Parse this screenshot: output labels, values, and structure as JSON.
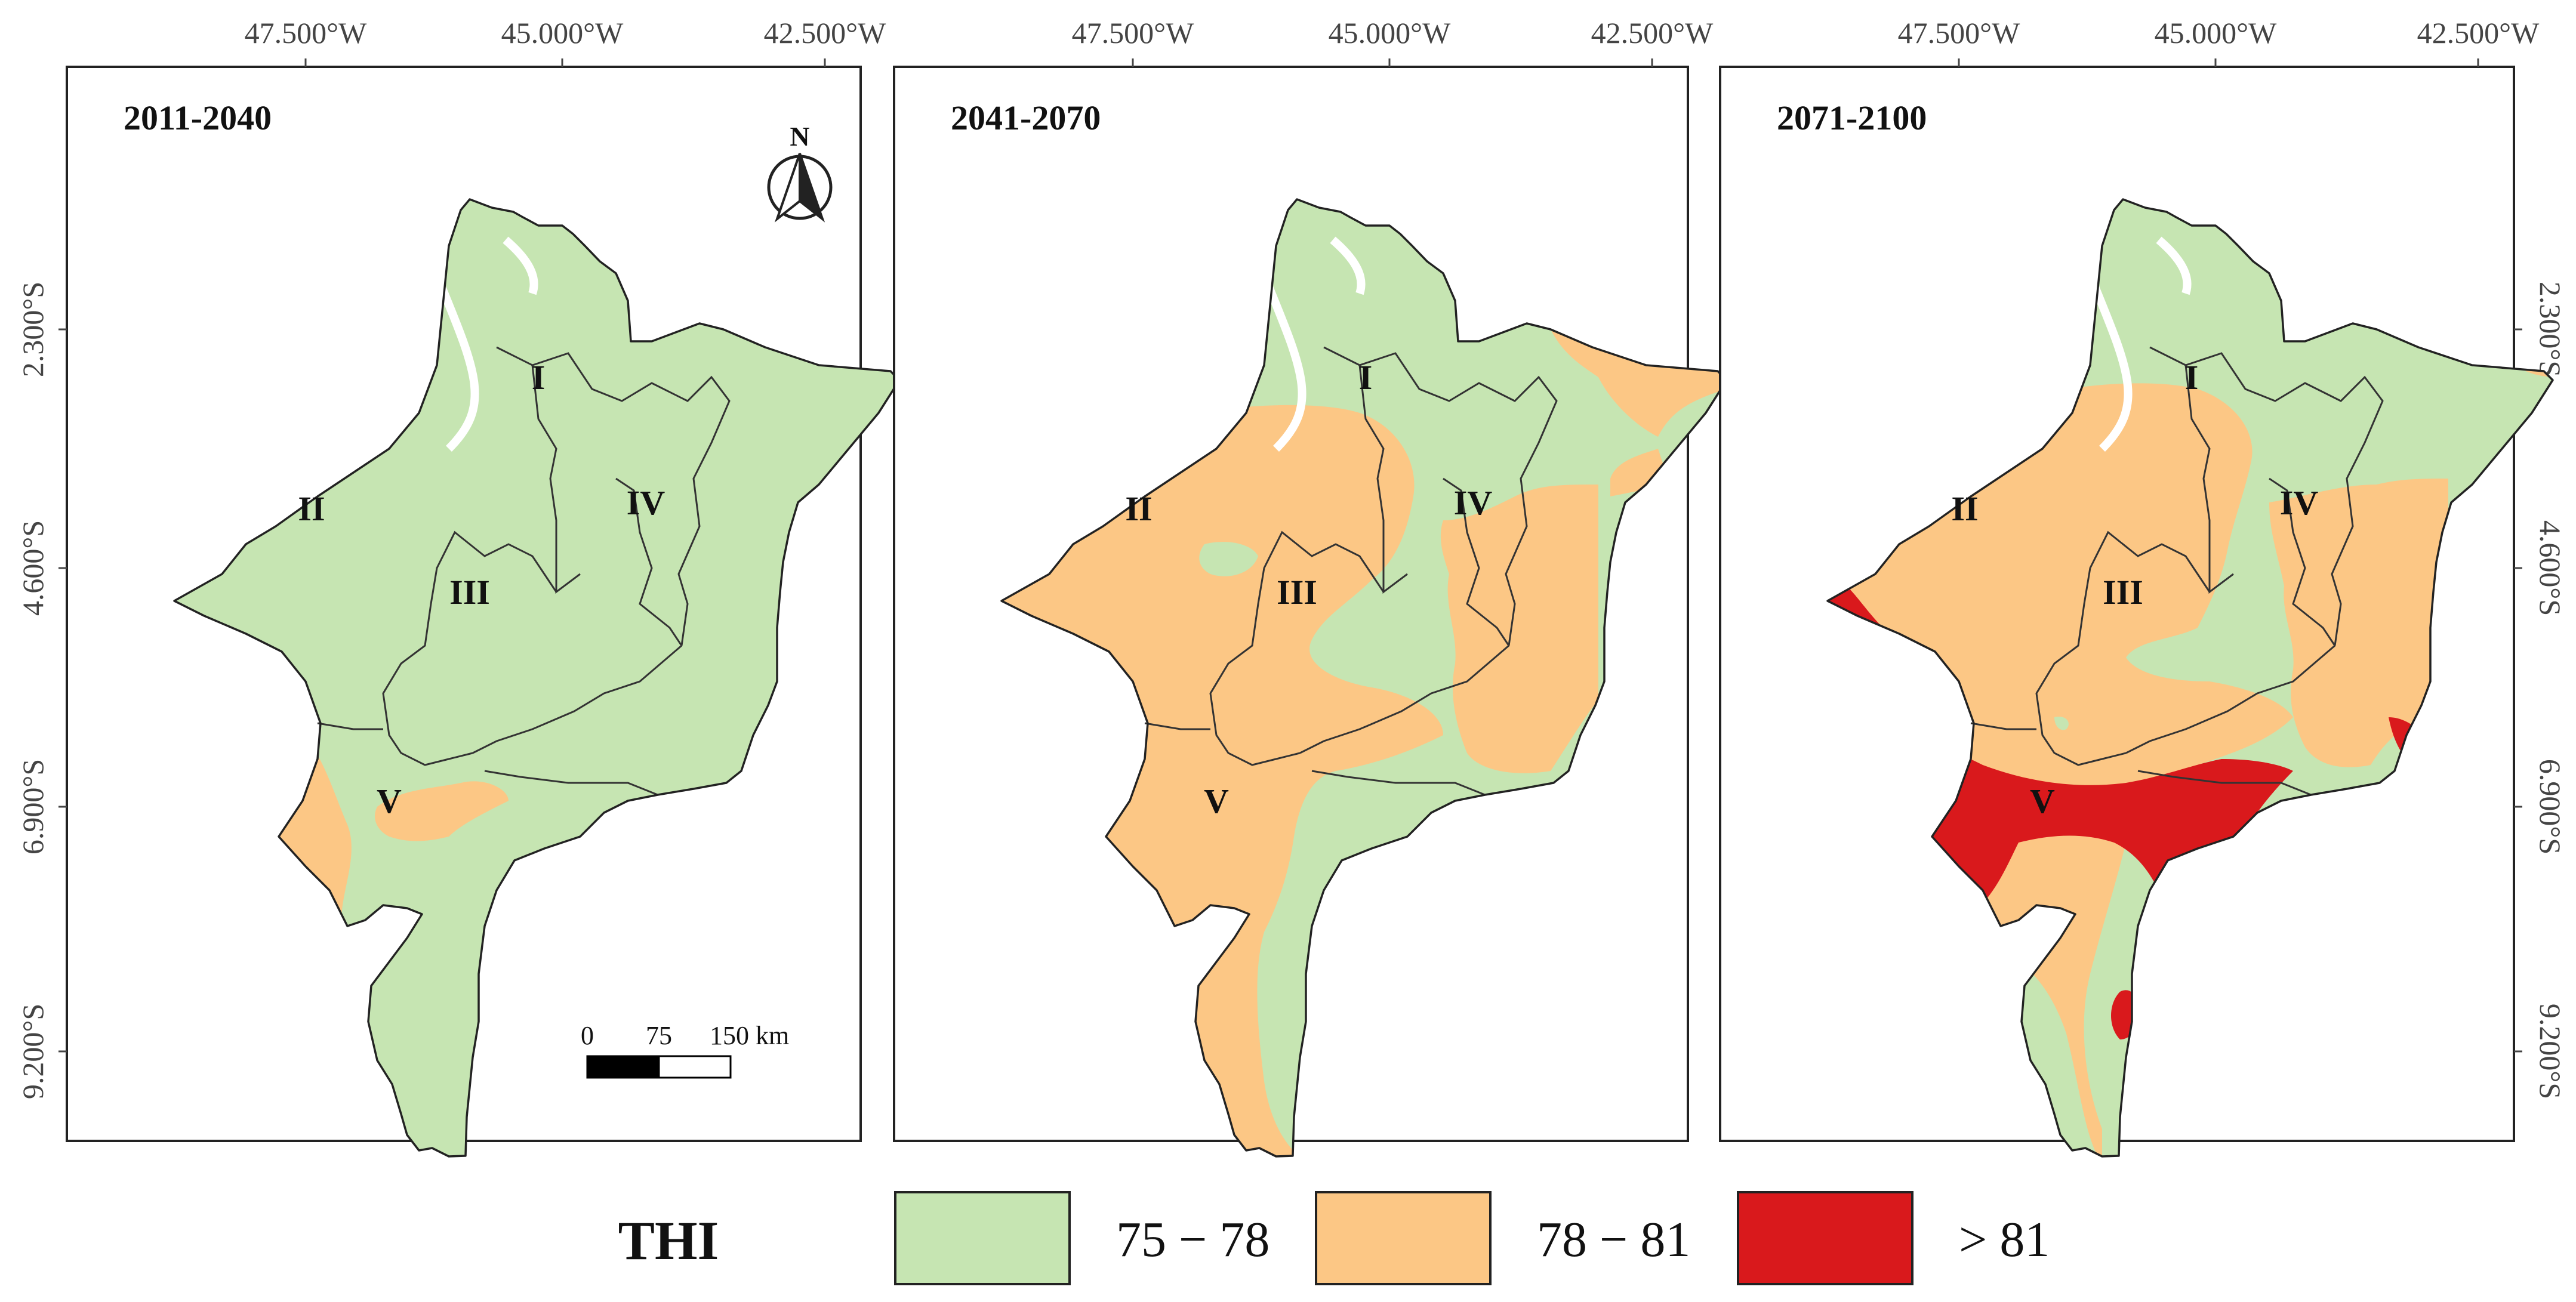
{
  "figure": {
    "panels": [
      {
        "period": "2011-2040",
        "north_label": "N",
        "scale": {
          "zero": "0",
          "mid": "75",
          "end": "150 km"
        }
      },
      {
        "period": "2041-2070"
      },
      {
        "period": "2071-2100"
      }
    ],
    "lon_ticks": [
      "47.500°W",
      "45.000°W",
      "42.500°W"
    ],
    "lat_ticks": [
      "2.300°S",
      "4.600°S",
      "6.900°S",
      "9.200°S"
    ],
    "regions": [
      "I",
      "II",
      "III",
      "IV",
      "V"
    ],
    "legend": {
      "title": "THI",
      "items": [
        {
          "label": "75 − 78",
          "color": "#c6e5b2"
        },
        {
          "label": "78 − 81",
          "color": "#fcc785"
        },
        {
          "label": "> 81",
          "color": "#d9191c"
        }
      ]
    }
  }
}
